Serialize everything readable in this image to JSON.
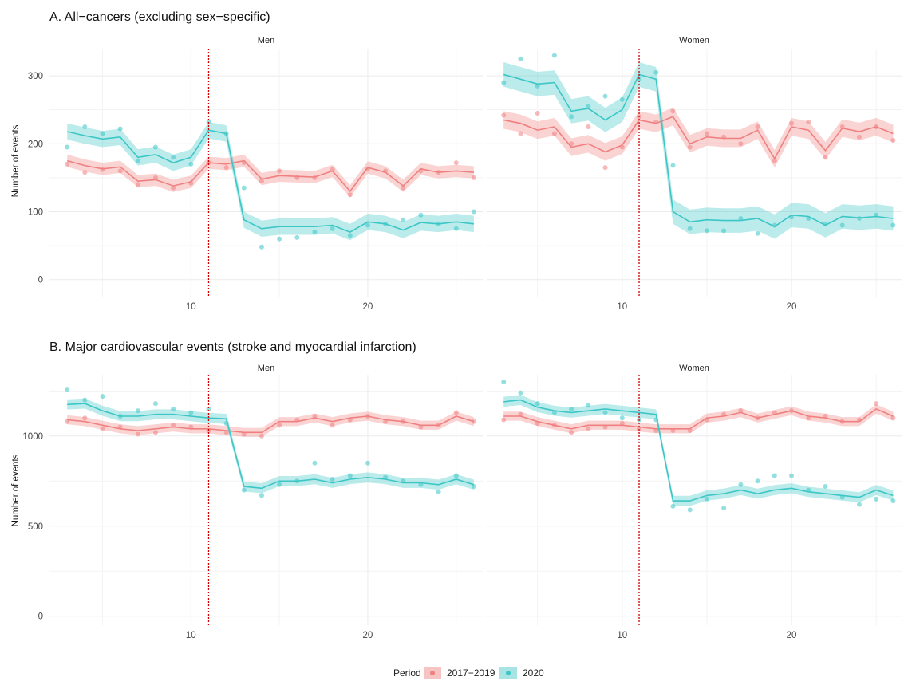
{
  "colors": {
    "p2017": "#f08080",
    "p2020": "#3cc6c6",
    "vline": "#d40000",
    "grid": "#ebebeb"
  },
  "legend": {
    "title": "Period",
    "items": [
      "2017−2019",
      "2020"
    ]
  },
  "chart_data": [
    {
      "type": "line",
      "title": "A. All−cancers (excluding sex−specific)",
      "ylabel": "Number of events",
      "ylim": [
        -25,
        340
      ],
      "yticks": [
        0,
        100,
        200,
        300
      ],
      "xlim": [
        2,
        26.5
      ],
      "xticks": [
        10,
        20
      ],
      "vline": 11,
      "facets": [
        {
          "label": "Men",
          "series": [
            {
              "name": "2017−2019",
              "color_key": "p2017",
              "band": 9,
              "x": [
                3,
                4,
                5,
                6,
                7,
                8,
                9,
                10,
                11,
                12,
                13,
                14,
                15,
                16,
                17,
                18,
                19,
                20,
                21,
                22,
                23,
                24,
                25,
                26
              ],
              "fit": [
                175,
                168,
                163,
                166,
                145,
                147,
                138,
                144,
                172,
                170,
                175,
                148,
                153,
                152,
                151,
                160,
                130,
                165,
                158,
                138,
                163,
                158,
                160,
                158
              ],
              "points": [
                170,
                158,
                162,
                160,
                140,
                150,
                135,
                142,
                172,
                165,
                172,
                145,
                160,
                150,
                150,
                162,
                125,
                163,
                160,
                135,
                160,
                158,
                172,
                150
              ]
            },
            {
              "name": "2020",
              "color_key": "p2020",
              "band": 12,
              "x": [
                3,
                4,
                5,
                6,
                7,
                8,
                9,
                10,
                11,
                12,
                13,
                14,
                15,
                16,
                17,
                18,
                19,
                20,
                21,
                22,
                23,
                24,
                25,
                26
              ],
              "fit": [
                218,
                212,
                207,
                210,
                180,
                184,
                172,
                180,
                220,
                215,
                88,
                75,
                78,
                78,
                78,
                80,
                70,
                85,
                82,
                73,
                84,
                82,
                85,
                82
              ],
              "points": [
                195,
                225,
                215,
                222,
                175,
                195,
                180,
                170,
                232,
                215,
                135,
                48,
                60,
                62,
                70,
                75,
                65,
                80,
                82,
                88,
                95,
                82,
                75,
                100
              ]
            }
          ]
        },
        {
          "label": "Women",
          "series": [
            {
              "name": "2017−2019",
              "color_key": "p2017",
              "band": 13,
              "x": [
                3,
                4,
                5,
                6,
                7,
                8,
                9,
                10,
                11,
                12,
                13,
                14,
                15,
                16,
                17,
                18,
                19,
                20,
                21,
                22,
                23,
                24,
                25,
                26
              ],
              "fit": [
                235,
                230,
                220,
                225,
                195,
                200,
                188,
                198,
                235,
                230,
                240,
                200,
                210,
                208,
                208,
                220,
                178,
                225,
                220,
                190,
                223,
                218,
                225,
                215
              ],
              "points": [
                242,
                215,
                245,
                215,
                200,
                225,
                165,
                195,
                240,
                232,
                248,
                195,
                215,
                210,
                200,
                225,
                175,
                230,
                232,
                180,
                225,
                210,
                225,
                205
              ]
            },
            {
              "name": "2020",
              "color_key": "p2020",
              "band": 18,
              "x": [
                3,
                4,
                5,
                6,
                7,
                8,
                9,
                10,
                11,
                12,
                13,
                14,
                15,
                16,
                17,
                18,
                19,
                20,
                21,
                22,
                23,
                24,
                25,
                26
              ],
              "fit": [
                302,
                295,
                288,
                290,
                248,
                252,
                235,
                250,
                302,
                295,
                100,
                85,
                88,
                87,
                87,
                90,
                78,
                95,
                93,
                80,
                93,
                91,
                93,
                90
              ],
              "points": [
                290,
                325,
                285,
                330,
                240,
                255,
                270,
                265,
                295,
                305,
                168,
                75,
                72,
                72,
                90,
                68,
                80,
                92,
                90,
                82,
                80,
                90,
                95,
                80
              ]
            }
          ]
        }
      ]
    },
    {
      "type": "line",
      "title": "B. Major cardiovascular events (stroke and myocardial infarction)",
      "ylabel": "Number of events",
      "ylim": [
        -50,
        1340
      ],
      "yticks": [
        0,
        500,
        1000
      ],
      "xlim": [
        2,
        26.5
      ],
      "xticks": [
        10,
        20
      ],
      "vline": 11,
      "facets": [
        {
          "label": "Men",
          "series": [
            {
              "name": "2017−2019",
              "color_key": "p2017",
              "band": 25,
              "x": [
                3,
                4,
                5,
                6,
                7,
                8,
                9,
                10,
                11,
                12,
                13,
                14,
                15,
                16,
                17,
                18,
                19,
                20,
                21,
                22,
                23,
                24,
                25,
                26
              ],
              "fit": [
                1090,
                1080,
                1060,
                1040,
                1030,
                1040,
                1050,
                1040,
                1040,
                1030,
                1020,
                1020,
                1080,
                1080,
                1100,
                1080,
                1100,
                1110,
                1090,
                1080,
                1060,
                1060,
                1110,
                1080
              ],
              "points": [
                1080,
                1100,
                1040,
                1050,
                1010,
                1020,
                1060,
                1050,
                1030,
                1020,
                1010,
                1000,
                1060,
                1090,
                1110,
                1060,
                1090,
                1110,
                1080,
                1080,
                1050,
                1060,
                1130,
                1080
              ]
            },
            {
              "name": "2020",
              "color_key": "p2020",
              "band": 28,
              "x": [
                3,
                4,
                5,
                6,
                7,
                8,
                9,
                10,
                11,
                12,
                13,
                14,
                15,
                16,
                17,
                18,
                19,
                20,
                21,
                22,
                23,
                24,
                25,
                26
              ],
              "fit": [
                1175,
                1180,
                1140,
                1110,
                1110,
                1120,
                1120,
                1110,
                1100,
                1095,
                720,
                710,
                750,
                750,
                760,
                740,
                760,
                770,
                760,
                740,
                740,
                730,
                760,
                730
              ],
              "points": [
                1260,
                1200,
                1220,
                1110,
                1140,
                1180,
                1150,
                1130,
                1150,
                1070,
                700,
                670,
                730,
                750,
                850,
                760,
                780,
                850,
                770,
                750,
                730,
                690,
                780,
                720
              ]
            }
          ]
        },
        {
          "label": "Women",
          "series": [
            {
              "name": "2017−2019",
              "color_key": "p2017",
              "band": 25,
              "x": [
                3,
                4,
                5,
                6,
                7,
                8,
                9,
                10,
                11,
                12,
                13,
                14,
                15,
                16,
                17,
                18,
                19,
                20,
                21,
                22,
                23,
                24,
                25,
                26
              ],
              "fit": [
                1110,
                1110,
                1080,
                1060,
                1040,
                1060,
                1060,
                1060,
                1050,
                1040,
                1040,
                1040,
                1100,
                1110,
                1130,
                1100,
                1120,
                1140,
                1110,
                1100,
                1080,
                1080,
                1150,
                1110
              ],
              "points": [
                1090,
                1120,
                1070,
                1060,
                1020,
                1040,
                1050,
                1070,
                1040,
                1030,
                1030,
                1030,
                1090,
                1120,
                1140,
                1100,
                1130,
                1140,
                1100,
                1110,
                1080,
                1090,
                1180,
                1100
              ]
            },
            {
              "name": "2020",
              "color_key": "p2020",
              "band": 28,
              "x": [
                3,
                4,
                5,
                6,
                7,
                8,
                9,
                10,
                11,
                12,
                13,
                14,
                15,
                16,
                17,
                18,
                19,
                20,
                21,
                22,
                23,
                24,
                25,
                26
              ],
              "fit": [
                1190,
                1200,
                1160,
                1140,
                1130,
                1140,
                1150,
                1140,
                1130,
                1120,
                640,
                640,
                670,
                680,
                700,
                680,
                700,
                710,
                690,
                680,
                670,
                660,
                700,
                670
              ],
              "points": [
                1300,
                1240,
                1180,
                1130,
                1150,
                1170,
                1130,
                1100,
                1090,
                1090,
                610,
                590,
                650,
                600,
                730,
                750,
                780,
                780,
                700,
                720,
                660,
                620,
                650,
                640
              ]
            }
          ]
        }
      ]
    }
  ]
}
